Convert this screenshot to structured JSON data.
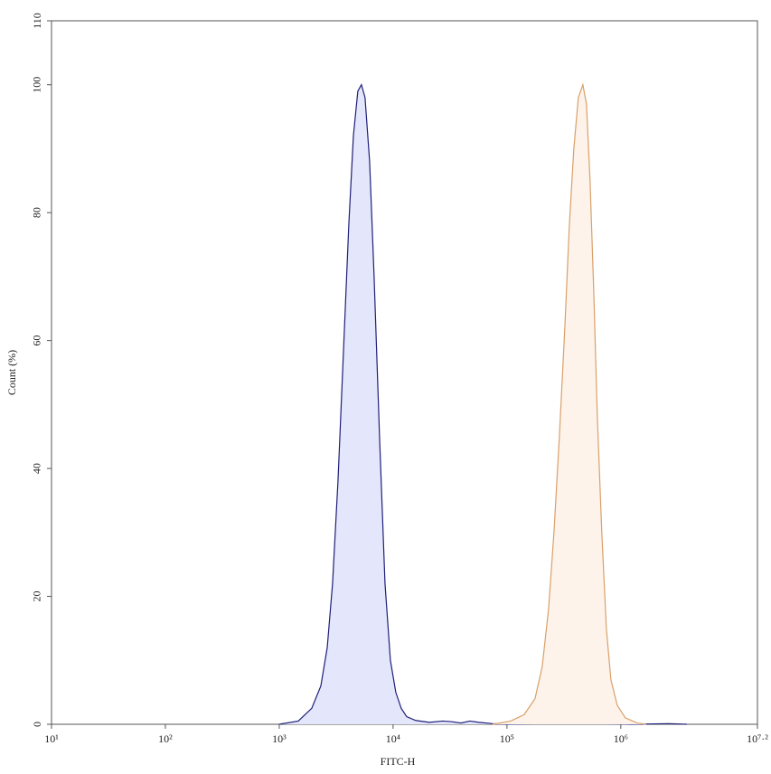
{
  "chart_data": {
    "type": "area",
    "xlabel": "FITC-H",
    "ylabel": "Count (%)",
    "xscale": "log",
    "xlim": [
      10,
      15848931.9
    ],
    "ylim": [
      0,
      110
    ],
    "xticks": [
      {
        "value": 10,
        "label": "10¹"
      },
      {
        "value": 100,
        "label": "10²"
      },
      {
        "value": 1000,
        "label": "10³"
      },
      {
        "value": 10000,
        "label": "10⁴"
      },
      {
        "value": 100000,
        "label": "10⁵"
      },
      {
        "value": 1000000,
        "label": "10⁶"
      },
      {
        "value": 15848931.9,
        "label": "10⁷·²"
      }
    ],
    "yticks": [
      0,
      20,
      40,
      60,
      80,
      100,
      110
    ],
    "series": [
      {
        "color": "#1f1f78",
        "fill": "#e4e7fb",
        "x": [
          1000,
          1470,
          1930,
          2320,
          2640,
          2940,
          3280,
          3660,
          4080,
          4480,
          4900,
          5270,
          5670,
          6220,
          6810,
          7600,
          8490,
          9470,
          10560,
          11780,
          13150,
          15780,
          20750,
          27340,
          32810,
          39380,
          47280,
          56750,
          74650,
          98200,
          423600,
          611000,
          1268000,
          2634000,
          3793000
        ],
        "values": [
          0,
          0.5,
          2.5,
          6,
          12,
          22,
          38,
          58,
          78,
          92,
          99,
          100,
          98,
          88,
          70,
          45,
          22,
          10,
          5,
          2.5,
          1.2,
          0.6,
          0.3,
          0.5,
          0.4,
          0.2,
          0.5,
          0.3,
          0.1,
          0,
          0.2,
          0.1,
          0,
          0.1,
          0
        ]
      },
      {
        "color": "#d9a06a",
        "fill": "#fdf3ea",
        "x": [
          74650,
          107600,
          141600,
          176300,
          204000,
          231900,
          258800,
          288700,
          322200,
          353100,
          386600,
          423600,
          464300,
          499100,
          536900,
          577800,
          622100,
          680800,
          746400,
          818200,
          929000,
          1096000,
          1390000,
          1667000
        ],
        "values": [
          0,
          0.5,
          1.5,
          4,
          9,
          18,
          30,
          45,
          62,
          78,
          90,
          98,
          100,
          97,
          85,
          68,
          48,
          30,
          15,
          7,
          3,
          1,
          0.2,
          0
        ]
      }
    ]
  }
}
